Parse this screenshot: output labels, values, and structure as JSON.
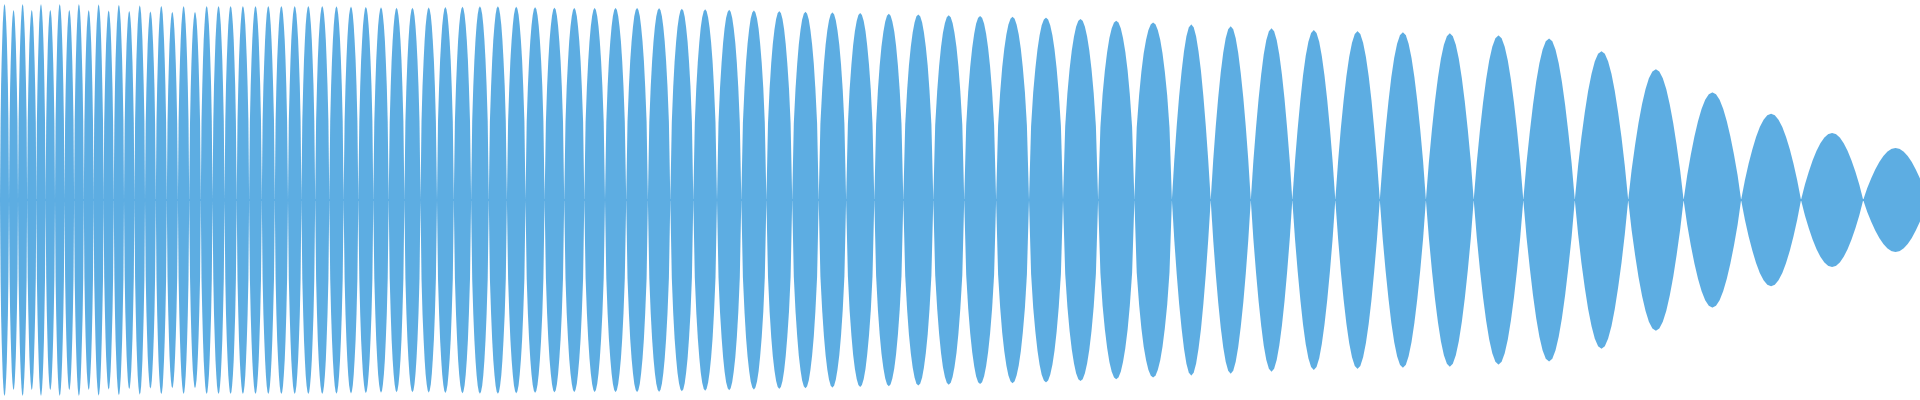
{
  "chart_data": {
    "type": "area",
    "title": "",
    "xlabel": "",
    "ylabel": "",
    "symmetric": true,
    "grid": false,
    "legend": "none",
    "color": "#5dade2",
    "ylim": [
      -1,
      1
    ],
    "envelope": [
      0.99,
      0.99,
      0.98,
      0.98,
      0.98,
      0.97,
      0.98,
      0.97,
      0.97,
      0.96,
      0.95,
      0.94,
      0.93,
      0.92,
      0.9,
      0.88,
      0.86,
      0.85,
      0.84,
      0.82,
      0.72,
      0.55,
      0.4,
      0.28,
      0.22
    ]
  }
}
